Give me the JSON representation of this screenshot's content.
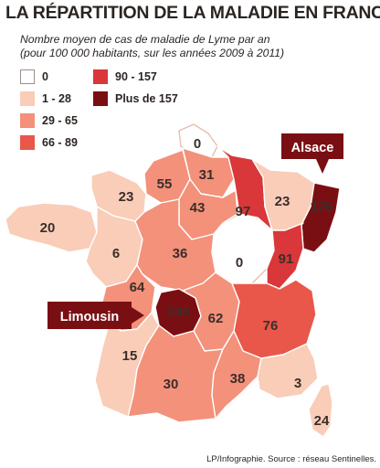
{
  "header": {
    "title": "LA RÉPARTITION DE LA MALADIE EN FRANCE",
    "subtitle_line1": "Nombre moyen de cas de maladie de Lyme par an",
    "subtitle_line2": "(pour 100 000 habitants, sur les années 2009 à 2011)"
  },
  "legend": [
    {
      "label": "0",
      "color": "#ffffff"
    },
    {
      "label": "1 - 28",
      "color": "#f9cdb8"
    },
    {
      "label": "29 - 65",
      "color": "#f3917a"
    },
    {
      "label": "66 - 89",
      "color": "#e8574a"
    },
    {
      "label": "90 - 157",
      "color": "#d9373a"
    },
    {
      "label": "Plus de 157",
      "color": "#7a0f13"
    }
  ],
  "regions": [
    {
      "value": "0",
      "color": "#ffffff"
    },
    {
      "value": "0",
      "color": "#ffffff"
    },
    {
      "value": "31",
      "color": "#f3917a"
    },
    {
      "value": "55",
      "color": "#f3917a"
    },
    {
      "value": "43",
      "color": "#f3917a"
    },
    {
      "value": "23",
      "color": "#f9cdb8"
    },
    {
      "value": "20",
      "color": "#f9cdb8"
    },
    {
      "value": "6",
      "color": "#f9cdb8"
    },
    {
      "value": "36",
      "color": "#f3917a"
    },
    {
      "value": "64",
      "color": "#f3917a"
    },
    {
      "value": "97",
      "color": "#d9373a"
    },
    {
      "value": "23",
      "color": "#f9cdb8"
    },
    {
      "value": "176",
      "color": "#7a0f13"
    },
    {
      "value": "91",
      "color": "#d9373a"
    },
    {
      "value": "235",
      "color": "#7a0f13"
    },
    {
      "value": "62",
      "color": "#f3917a"
    },
    {
      "value": "76",
      "color": "#e8574a"
    },
    {
      "value": "15",
      "color": "#f9cdb8"
    },
    {
      "value": "30",
      "color": "#f3917a"
    },
    {
      "value": "38",
      "color": "#f3917a"
    },
    {
      "value": "3",
      "color": "#f9cdb8"
    },
    {
      "value": "24",
      "color": "#f9cdb8"
    }
  ],
  "callouts": {
    "alsace": {
      "label": "Alsace",
      "color": "#7a0f13"
    },
    "limousin": {
      "label": "Limousin",
      "color": "#7a0f13"
    }
  },
  "credit": "LP/Infographie.  Source : réseau Sentinelles."
}
